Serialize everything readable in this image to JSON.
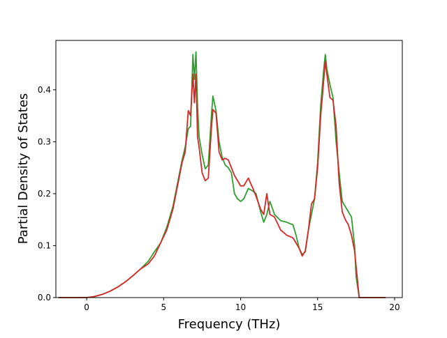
{
  "chart_data": {
    "type": "line",
    "title": "",
    "xlabel": "Frequency (THz)",
    "ylabel": "Partial Density of States",
    "xlim": [
      -2.0,
      20.5
    ],
    "ylim": [
      0.0,
      0.495
    ],
    "xticks": [
      0,
      5,
      10,
      15,
      20
    ],
    "yticks": [
      0.0,
      0.1,
      0.2,
      0.3,
      0.4
    ],
    "xtick_labels": [
      "0",
      "5",
      "10",
      "15",
      "20"
    ],
    "ytick_labels": [
      "0.0",
      "0.1",
      "0.2",
      "0.3",
      "0.4"
    ],
    "grid": false,
    "legend": "none",
    "series": [
      {
        "color": "#2ca02c",
        "points": [
          [
            -1.8,
            0.0
          ],
          [
            0.0,
            0.0
          ],
          [
            0.5,
            0.002
          ],
          [
            1.0,
            0.006
          ],
          [
            1.5,
            0.012
          ],
          [
            2.0,
            0.02
          ],
          [
            2.5,
            0.03
          ],
          [
            3.0,
            0.042
          ],
          [
            3.5,
            0.055
          ],
          [
            4.0,
            0.07
          ],
          [
            4.4,
            0.088
          ],
          [
            4.8,
            0.105
          ],
          [
            5.2,
            0.135
          ],
          [
            5.6,
            0.175
          ],
          [
            6.0,
            0.235
          ],
          [
            6.2,
            0.265
          ],
          [
            6.4,
            0.29
          ],
          [
            6.6,
            0.325
          ],
          [
            6.75,
            0.33
          ],
          [
            6.9,
            0.468
          ],
          [
            7.0,
            0.42
          ],
          [
            7.1,
            0.473
          ],
          [
            7.2,
            0.37
          ],
          [
            7.3,
            0.31
          ],
          [
            7.5,
            0.275
          ],
          [
            7.7,
            0.248
          ],
          [
            7.9,
            0.255
          ],
          [
            8.1,
            0.35
          ],
          [
            8.2,
            0.388
          ],
          [
            8.4,
            0.36
          ],
          [
            8.6,
            0.3
          ],
          [
            8.8,
            0.27
          ],
          [
            9.0,
            0.255
          ],
          [
            9.2,
            0.25
          ],
          [
            9.4,
            0.24
          ],
          [
            9.6,
            0.2
          ],
          [
            9.8,
            0.19
          ],
          [
            10.0,
            0.185
          ],
          [
            10.2,
            0.19
          ],
          [
            10.5,
            0.21
          ],
          [
            10.8,
            0.205
          ],
          [
            11.0,
            0.2
          ],
          [
            11.3,
            0.165
          ],
          [
            11.5,
            0.145
          ],
          [
            11.7,
            0.16
          ],
          [
            11.9,
            0.185
          ],
          [
            12.2,
            0.16
          ],
          [
            12.6,
            0.148
          ],
          [
            13.0,
            0.145
          ],
          [
            13.4,
            0.14
          ],
          [
            13.6,
            0.12
          ],
          [
            13.8,
            0.095
          ],
          [
            14.0,
            0.083
          ],
          [
            14.2,
            0.088
          ],
          [
            14.4,
            0.13
          ],
          [
            14.6,
            0.16
          ],
          [
            14.8,
            0.19
          ],
          [
            15.0,
            0.26
          ],
          [
            15.2,
            0.37
          ],
          [
            15.4,
            0.44
          ],
          [
            15.5,
            0.468
          ],
          [
            15.6,
            0.44
          ],
          [
            15.8,
            0.41
          ],
          [
            16.0,
            0.385
          ],
          [
            16.2,
            0.3
          ],
          [
            16.4,
            0.24
          ],
          [
            16.6,
            0.185
          ],
          [
            16.8,
            0.175
          ],
          [
            17.0,
            0.165
          ],
          [
            17.2,
            0.155
          ],
          [
            17.4,
            0.1
          ],
          [
            17.5,
            0.04
          ],
          [
            17.7,
            0.0
          ],
          [
            19.4,
            0.0
          ]
        ]
      },
      {
        "color": "#d62728",
        "points": [
          [
            -1.8,
            0.0
          ],
          [
            0.0,
            0.0
          ],
          [
            0.5,
            0.002
          ],
          [
            1.0,
            0.006
          ],
          [
            1.5,
            0.012
          ],
          [
            2.0,
            0.02
          ],
          [
            2.5,
            0.03
          ],
          [
            3.0,
            0.042
          ],
          [
            3.5,
            0.055
          ],
          [
            4.0,
            0.065
          ],
          [
            4.4,
            0.08
          ],
          [
            4.8,
            0.105
          ],
          [
            5.2,
            0.13
          ],
          [
            5.6,
            0.17
          ],
          [
            6.0,
            0.23
          ],
          [
            6.2,
            0.26
          ],
          [
            6.4,
            0.28
          ],
          [
            6.6,
            0.36
          ],
          [
            6.75,
            0.35
          ],
          [
            6.9,
            0.43
          ],
          [
            7.0,
            0.375
          ],
          [
            7.1,
            0.43
          ],
          [
            7.2,
            0.31
          ],
          [
            7.3,
            0.29
          ],
          [
            7.5,
            0.24
          ],
          [
            7.7,
            0.225
          ],
          [
            7.9,
            0.23
          ],
          [
            8.1,
            0.325
          ],
          [
            8.2,
            0.362
          ],
          [
            8.4,
            0.355
          ],
          [
            8.6,
            0.28
          ],
          [
            8.8,
            0.265
          ],
          [
            9.0,
            0.268
          ],
          [
            9.2,
            0.265
          ],
          [
            9.4,
            0.25
          ],
          [
            9.6,
            0.235
          ],
          [
            9.8,
            0.225
          ],
          [
            10.0,
            0.215
          ],
          [
            10.2,
            0.215
          ],
          [
            10.5,
            0.23
          ],
          [
            10.8,
            0.21
          ],
          [
            11.0,
            0.195
          ],
          [
            11.3,
            0.17
          ],
          [
            11.5,
            0.16
          ],
          [
            11.7,
            0.2
          ],
          [
            11.9,
            0.16
          ],
          [
            12.2,
            0.155
          ],
          [
            12.6,
            0.13
          ],
          [
            13.0,
            0.12
          ],
          [
            13.4,
            0.115
          ],
          [
            13.6,
            0.105
          ],
          [
            13.8,
            0.095
          ],
          [
            14.0,
            0.08
          ],
          [
            14.2,
            0.09
          ],
          [
            14.4,
            0.13
          ],
          [
            14.6,
            0.18
          ],
          [
            14.8,
            0.19
          ],
          [
            15.0,
            0.25
          ],
          [
            15.2,
            0.35
          ],
          [
            15.4,
            0.42
          ],
          [
            15.5,
            0.455
          ],
          [
            15.6,
            0.43
          ],
          [
            15.8,
            0.385
          ],
          [
            16.0,
            0.38
          ],
          [
            16.2,
            0.33
          ],
          [
            16.4,
            0.22
          ],
          [
            16.6,
            0.165
          ],
          [
            16.8,
            0.15
          ],
          [
            17.0,
            0.14
          ],
          [
            17.2,
            0.12
          ],
          [
            17.4,
            0.09
          ],
          [
            17.5,
            0.06
          ],
          [
            17.7,
            0.0
          ],
          [
            19.4,
            0.0
          ]
        ]
      }
    ]
  }
}
